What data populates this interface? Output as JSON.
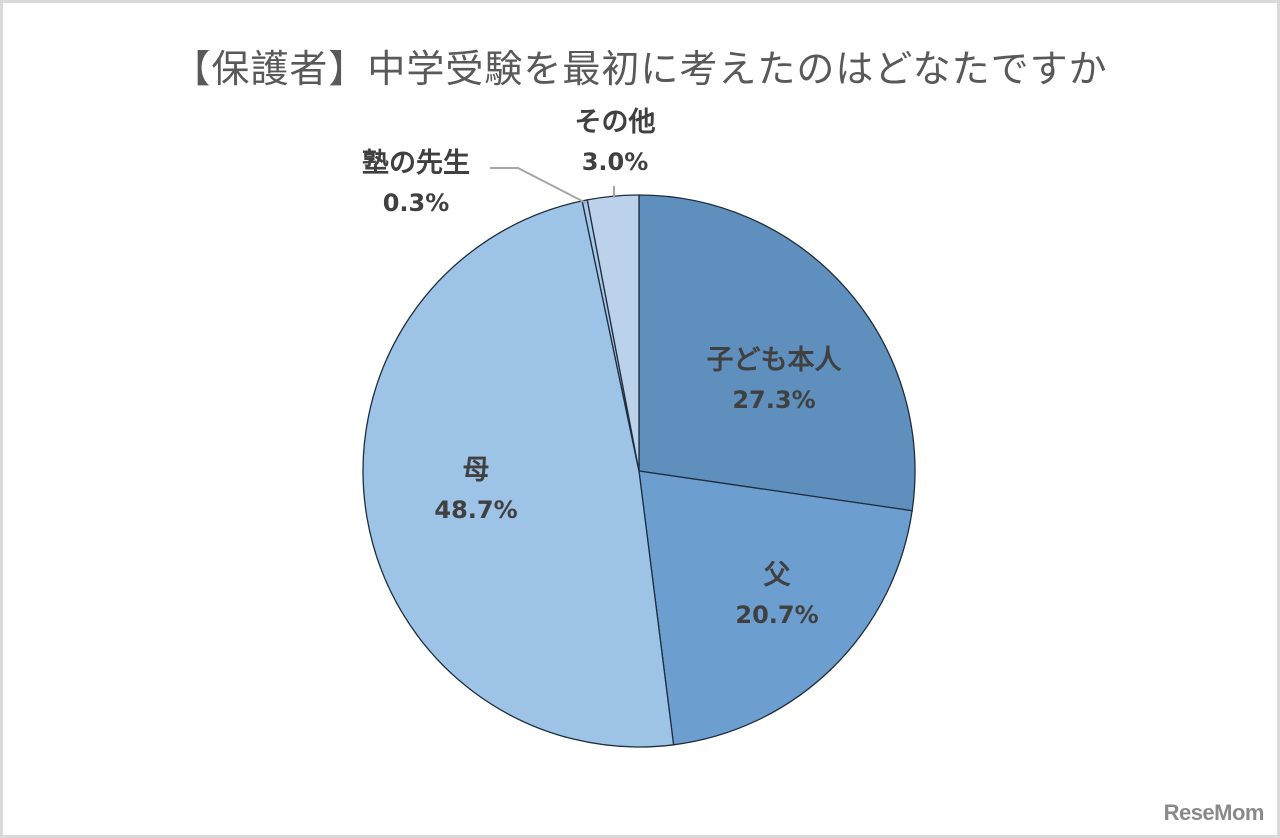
{
  "title": "【保護者】中学受験を最初に考えたのはどなたですか",
  "watermark": "ReseMom",
  "colors": {
    "child": "#5f8fbd",
    "father": "#6c9fd0",
    "mother": "#9dc3e6",
    "juku": "#a9c9e8",
    "other": "#bcd1ea",
    "border": "#1f2d3d",
    "label": "#404040",
    "leader": "#a6a6a6"
  },
  "chart_data": {
    "type": "pie",
    "title": "【保護者】中学受験を最初に考えたのはどなたですか",
    "start_angle_deg": 0,
    "direction": "clockwise",
    "slices": [
      {
        "label": "子ども本人",
        "value": 27.3,
        "display": "27.3%"
      },
      {
        "label": "父",
        "value": 20.7,
        "display": "20.7%"
      },
      {
        "label": "母",
        "value": 48.7,
        "display": "48.7%"
      },
      {
        "label": "塾の先生",
        "value": 0.3,
        "display": "0.3%"
      },
      {
        "label": "その他",
        "value": 3.0,
        "display": "3.0%"
      }
    ],
    "legend": "none (data labels on slices)"
  },
  "labels": {
    "child": {
      "name": "子ども本人",
      "pct": "27.3%"
    },
    "father": {
      "name": "父",
      "pct": "20.7%"
    },
    "mother": {
      "name": "母",
      "pct": "48.7%"
    },
    "juku": {
      "name": "塾の先生",
      "pct": "0.3%"
    },
    "other": {
      "name": "その他",
      "pct": "3.0%"
    }
  }
}
